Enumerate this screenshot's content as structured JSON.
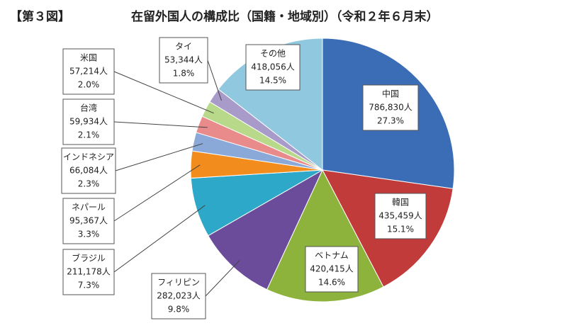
{
  "chart_data": {
    "type": "pie",
    "figure_label": "【第３図】",
    "title": "在留外国人の構成比（国籍・地域別）（令和２年６月末）",
    "categories": [
      "中国",
      "韓国",
      "ベトナム",
      "フィリピン",
      "ブラジル",
      "ネパール",
      "インドネシア",
      "台湾",
      "米国",
      "タイ",
      "その他"
    ],
    "values": [
      786830,
      435459,
      420415,
      282023,
      211178,
      95367,
      66084,
      59934,
      57214,
      53344,
      418056
    ],
    "value_labels": [
      "786,830人",
      "435,459人",
      "420,415人",
      "282,023人",
      "211,178人",
      "95,367人",
      "66,084人",
      "59,934人",
      "57,214人",
      "53,344人",
      "418,056人"
    ],
    "percents": [
      27.3,
      15.1,
      14.6,
      9.8,
      7.3,
      3.3,
      2.3,
      2.1,
      2.0,
      1.8,
      14.5
    ],
    "percent_labels": [
      "27.3%",
      "15.1%",
      "14.6%",
      "9.8%",
      "7.3%",
      "3.3%",
      "2.3%",
      "2.1%",
      "2.0%",
      "1.8%",
      "14.5%"
    ],
    "colors": [
      "#3a6db5",
      "#c23b3b",
      "#8db33c",
      "#6b4c9a",
      "#2ea8c8",
      "#f28c1c",
      "#8aa9d9",
      "#e98b8b",
      "#b9d98a",
      "#a99bc9",
      "#90c8e0"
    ]
  }
}
